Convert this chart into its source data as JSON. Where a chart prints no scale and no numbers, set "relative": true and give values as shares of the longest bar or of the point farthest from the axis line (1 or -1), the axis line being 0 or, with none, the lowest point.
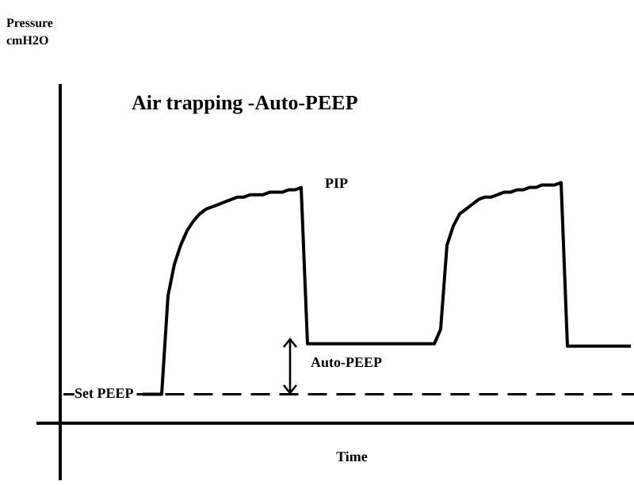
{
  "chart_data": {
    "type": "line",
    "title": "Air trapping -Auto-PEEP",
    "xlabel": "Time",
    "relative": true,
    "categories": [
      null,
      null,
      null,
      null,
      null,
      null,
      null,
      null,
      null,
      null,
      null,
      null,
      null,
      null,
      null,
      null,
      null,
      null,
      null,
      null,
      null,
      null,
      null,
      null,
      null,
      null,
      null,
      null,
      null,
      null,
      null,
      null,
      null,
      null,
      null,
      null,
      null,
      null,
      null,
      null,
      null,
      null,
      null,
      null,
      null,
      null,
      null,
      null,
      null,
      null,
      null,
      null,
      null,
      null,
      null,
      null,
      null,
      null,
      null,
      null,
      null,
      null,
      null,
      null,
      null,
      null,
      null,
      null,
      null,
      null,
      null,
      null,
      null,
      null,
      null,
      null,
      null,
      null
    ],
    "series": [
      {
        "color": "#000000",
        "values": [
          0.12,
          0.12,
          0.12,
          0.12,
          0.53,
          0.66,
          0.74,
          0.8,
          0.84,
          0.87,
          0.89,
          0.9,
          0.91,
          0.92,
          0.93,
          0.94,
          0.94,
          0.95,
          0.95,
          0.95,
          0.96,
          0.96,
          0.96,
          0.97,
          0.97,
          0.98,
          0.33,
          0.33,
          0.33,
          0.33,
          0.33,
          0.33,
          0.33,
          0.33,
          0.33,
          0.33,
          0.33,
          0.33,
          0.33,
          0.33,
          0.33,
          0.33,
          0.33,
          0.33,
          0.33,
          0.33,
          0.33,
          0.39,
          0.74,
          0.82,
          0.87,
          0.89,
          0.91,
          0.93,
          0.94,
          0.94,
          0.95,
          0.96,
          0.96,
          0.97,
          0.97,
          0.98,
          0.98,
          0.99,
          0.99,
          0.99,
          1,
          0.32,
          0.32,
          0.32,
          0.32,
          0.32,
          0.32,
          0.32,
          0.32,
          0.32,
          0.32,
          0.32
        ]
      }
    ],
    "ref_lines": [
      {
        "axis": "y",
        "value": 0.12,
        "label": "Set PEEP",
        "line_style": "dashed",
        "color": "#000000"
      }
    ],
    "annotations": [
      "PIP",
      "Auto-PEEP",
      "Pressure cmH2O"
    ],
    "marker": "none",
    "line_style": "solid",
    "legend": false
  }
}
